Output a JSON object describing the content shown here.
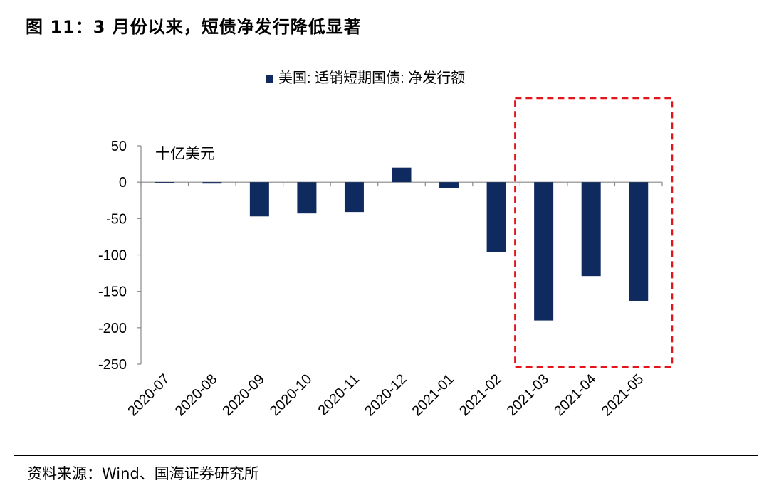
{
  "figure_title": "图 11：3 月份以来，短债净发行降低显著",
  "source": "资料来源：Wind、国海证券研究所",
  "colors": {
    "bar": "#0f2a5e",
    "highlight_box": "#e3151a"
  },
  "chart_data": {
    "type": "bar",
    "title": "",
    "xlabel": "",
    "ylabel": "",
    "unit_label": "十亿美元",
    "categories": [
      "2020-07",
      "2020-08",
      "2020-09",
      "2020-10",
      "2020-11",
      "2020-12",
      "2021-01",
      "2021-02",
      "2021-03",
      "2021-04",
      "2021-05"
    ],
    "series": [
      {
        "name": "美国: 适销短期国债: 净发行额",
        "values": [
          -1,
          -2,
          -47,
          -43,
          -41,
          20,
          -8,
          -96,
          -190,
          -129,
          -163
        ]
      }
    ],
    "ylim": [
      -250,
      50
    ],
    "yticks": [
      50,
      0,
      -50,
      -100,
      -150,
      -200,
      -250
    ],
    "ytick_labels": [
      "50",
      "0",
      "-50",
      "-100",
      "-150",
      "-200",
      "-250"
    ],
    "legend_position": "top-center",
    "grid": false,
    "highlight_categories": [
      "2021-03",
      "2021-04",
      "2021-05"
    ]
  }
}
